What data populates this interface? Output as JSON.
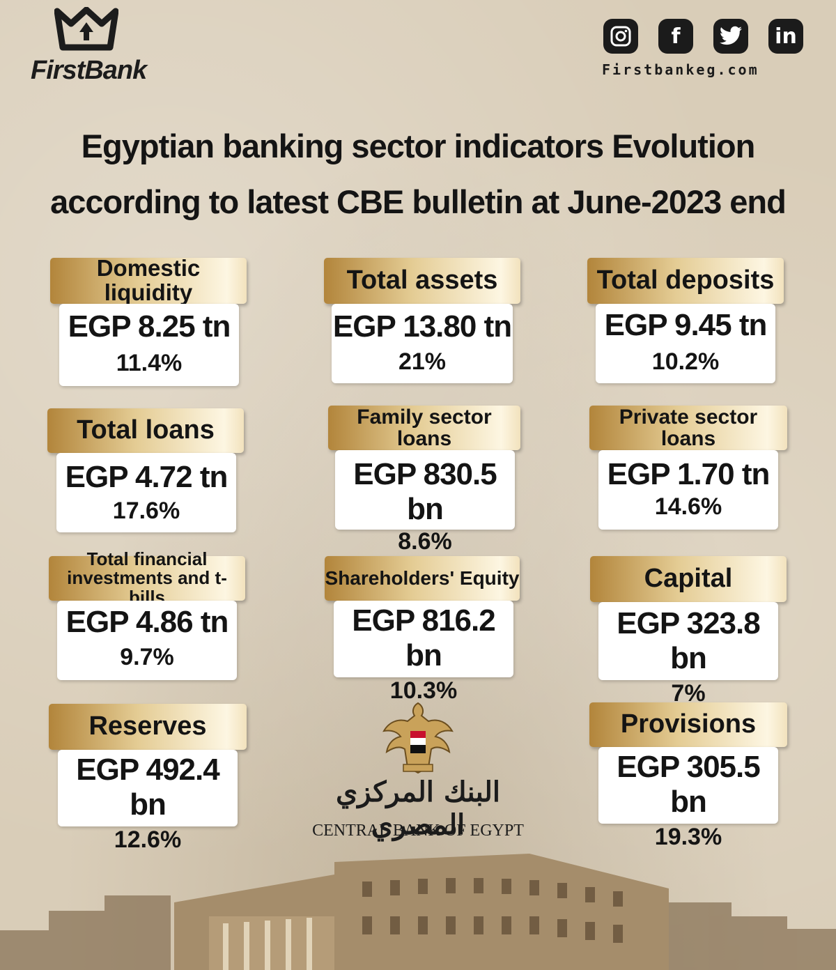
{
  "brand": {
    "name": "FirstBank",
    "website": "Firstbankeg.com"
  },
  "social": [
    {
      "name": "instagram-icon",
      "glyph": "◎"
    },
    {
      "name": "facebook-icon",
      "glyph": "f"
    },
    {
      "name": "twitter-icon",
      "glyph": "🐦"
    },
    {
      "name": "linkedin-icon",
      "glyph": "in"
    }
  ],
  "title": {
    "line1": "Egyptian banking sector indicators Evolution",
    "line2": "according to latest CBE bulletin at June-2023 end"
  },
  "indicators": [
    {
      "label": "Domestic liquidity",
      "value": "EGP 8.25 tn",
      "change": "11.4%"
    },
    {
      "label": "Total assets",
      "value": "EGP 13.80 tn",
      "change": "21%"
    },
    {
      "label": "Total deposits",
      "value": "EGP 9.45 tn",
      "change": "10.2%"
    },
    {
      "label": "Total loans",
      "value": "EGP 4.72 tn",
      "change": "17.6%"
    },
    {
      "label": "Family sector loans",
      "value": "EGP 830.5 bn",
      "change": "8.6%"
    },
    {
      "label": "Private sector loans",
      "value": "EGP 1.70 tn",
      "change": "14.6%"
    },
    {
      "label": "Total financial investments and t-bills",
      "value": "EGP 4.86 tn",
      "change": "9.7%"
    },
    {
      "label": "Shareholders' Equity",
      "value": "EGP 816.2 bn",
      "change": "10.3%"
    },
    {
      "label": "Capital",
      "value": "EGP 323.8 bn",
      "change": "7%"
    },
    {
      "label": "Reserves",
      "value": "EGP 492.4 bn",
      "change": "12.6%"
    },
    {
      "label": "Provisions",
      "value": "EGP 305.5 bn",
      "change": "19.3%"
    }
  ],
  "cbe": {
    "arabic_name": "البنك المركزي المصري",
    "english_name": "CENTRAL BANK OF EGYPT"
  },
  "colors": {
    "gold_dark": "#b2853b",
    "gold_light": "#fdf6e2",
    "text": "#141414",
    "background": "#d9cdb8"
  }
}
